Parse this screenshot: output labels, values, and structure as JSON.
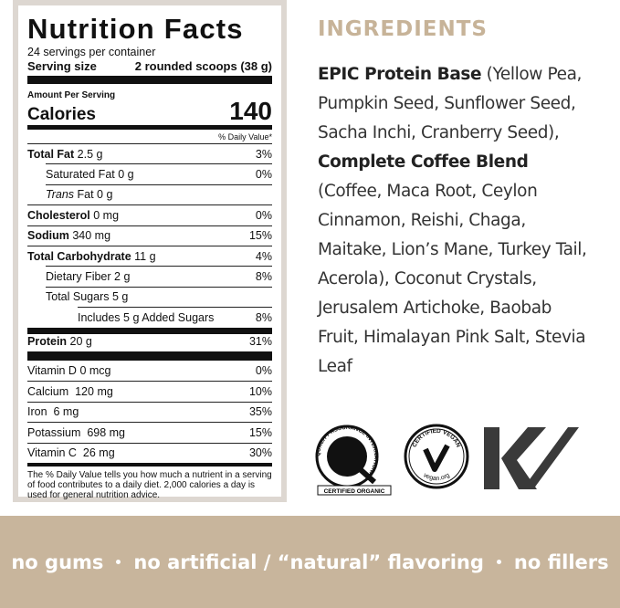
{
  "nutrition": {
    "title": "Nutrition Facts",
    "servings": "24 servings per container",
    "serving_size_label": "Serving size",
    "serving_size_value": "2 rounded scoops (38 g)",
    "amount_per_serving": "Amount Per Serving",
    "calories_label": "Calories",
    "calories_value": "140",
    "dv_header": "% Daily Value*",
    "rows": [
      {
        "label": "Total Fat",
        "amount": "2.5 g",
        "dv": "3%"
      },
      {
        "label": "Saturated Fat",
        "amount": "0 g",
        "dv": "0%"
      },
      {
        "label": "Trans",
        "amount": "Fat 0 g"
      },
      {
        "label": "Cholesterol",
        "amount": "0 mg",
        "dv": "0%"
      },
      {
        "label": "Sodium",
        "amount": "340 mg",
        "dv": "15%"
      },
      {
        "label": "Total Carbohydrate",
        "amount": "11 g",
        "dv": "4%"
      },
      {
        "label": "Dietary Fiber",
        "amount": "2 g",
        "dv": "8%"
      },
      {
        "label": "Total Sugars",
        "amount": "5 g"
      },
      {
        "label": "Includes 5 g Added Sugars",
        "dv": "8%"
      },
      {
        "label": "Protein",
        "amount": "20 g",
        "dv": "31%"
      }
    ],
    "vitamins": [
      {
        "label": "Vitamin D",
        "amount": "0 mcg",
        "dv": "0%"
      },
      {
        "label": "Calcium",
        "amount": "120 mg",
        "dv": "10%"
      },
      {
        "label": "Iron",
        "amount": "6 mg",
        "dv": "35%"
      },
      {
        "label": "Potassium",
        "amount": "698 mg",
        "dv": "15%"
      },
      {
        "label": "Vitamin C",
        "amount": "26 mg",
        "dv": "30%"
      }
    ],
    "footnote": "The % Daily Value tells you how much a nutrient in a serving of food contributes to a daily diet. 2,000 calories a day is used for general nutrition advice."
  },
  "ingredients": {
    "heading": "INGREDIENTS",
    "parts": [
      "EPIC Protein Base",
      " (Yellow Pea, Pumpkin Seed, Sunflower Seed, Sacha Inchi, Cranberry Seed), ",
      "Complete Coffee Blend",
      " (Coffee, Maca Root, Ceylon Cinnamon, Reishi, Chaga, Maitake, Lion’s Mane, Turkey Tail, Acerola), Coconut Crystals, Jerusalem Artichoke, Baobab Fruit, Himalayan Pink Salt, Stevia Leaf"
    ]
  },
  "badges": {
    "qai_ring": "QUALITY ASSURANCE INTERNATIONAL",
    "qai_caption": "CERTIFIED ORGANIC",
    "vegan_top": "CERTIFIED VEGAN",
    "vegan_bottom": "vegan.org"
  },
  "banner": [
    "no gums",
    "no artificial / “natural” flavoring",
    "no fillers"
  ]
}
